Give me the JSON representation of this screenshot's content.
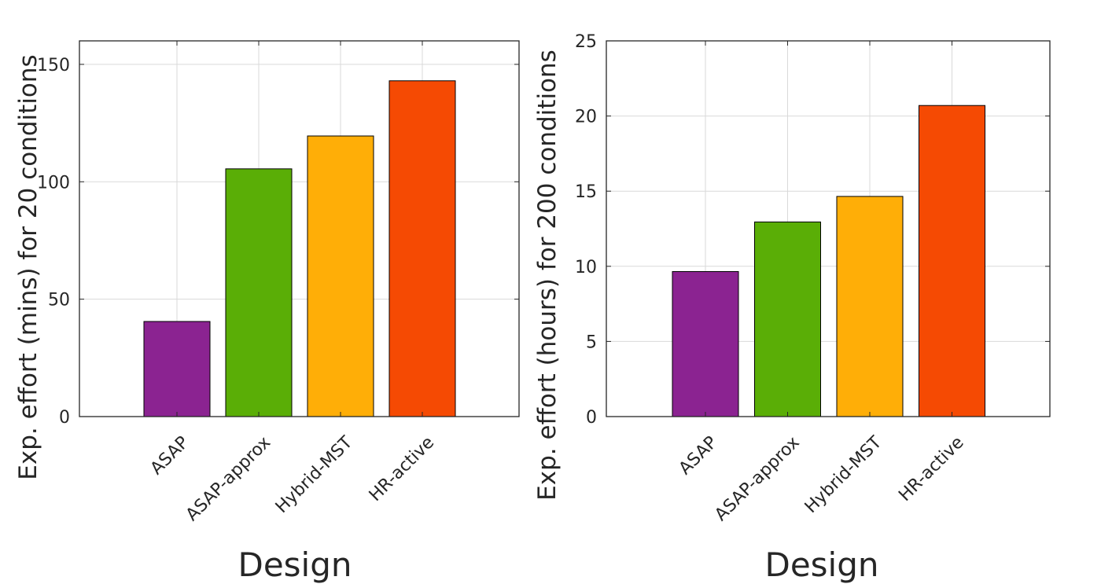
{
  "colors": {
    "ASAP": "#8b2391",
    "ASAP-approx": "#5aae06",
    "Hybrid-MST": "#ffae07",
    "HR-active": "#f54a03",
    "grid": "#d9d9d9",
    "axis": "#262626"
  },
  "chart_data": [
    {
      "type": "bar",
      "categories": [
        "ASAP",
        "ASAP-approx",
        "Hybrid-MST",
        "HR-active"
      ],
      "values": [
        40.5,
        105.5,
        119.5,
        143
      ],
      "title": "",
      "xlabel": "Design",
      "ylabel": "Exp. effort (mins) for 20 conditions",
      "ylim": [
        0,
        160
      ],
      "yticks": [
        0,
        50,
        100,
        150
      ],
      "grid": true,
      "legend": "none"
    },
    {
      "type": "bar",
      "categories": [
        "ASAP",
        "ASAP-approx",
        "Hybrid-MST",
        "HR-active"
      ],
      "values": [
        9.65,
        12.95,
        14.65,
        20.7
      ],
      "title": "",
      "xlabel": "Design",
      "ylabel": "Exp. effort (hours) for 200 conditions",
      "ylim": [
        0,
        25
      ],
      "yticks": [
        0,
        5,
        10,
        15,
        20,
        25
      ],
      "grid": true,
      "legend": "none"
    }
  ]
}
